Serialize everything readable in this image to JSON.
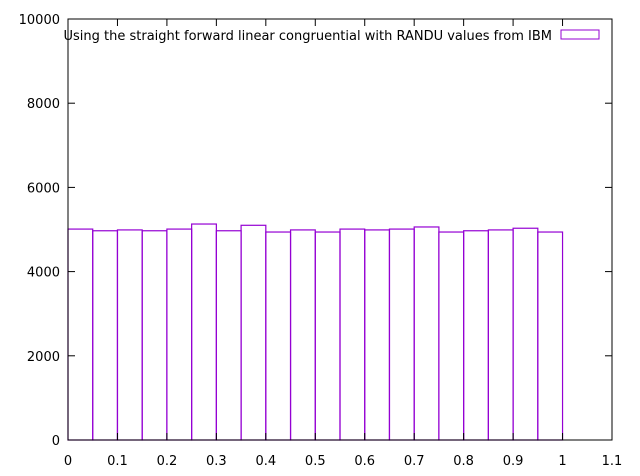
{
  "chart_data": {
    "type": "bar",
    "legend": {
      "label": "Using the straight forward linear congruential with RANDU values from IBM",
      "position": "top-right"
    },
    "xlim": [
      0,
      1.1
    ],
    "ylim": [
      0,
      10000
    ],
    "x_ticks": [
      "0",
      "0.1",
      "0.2",
      "0.3",
      "0.4",
      "0.5",
      "0.6",
      "0.7",
      "0.8",
      "0.9",
      "1",
      "1.1"
    ],
    "y_ticks": [
      "0",
      "2000",
      "4000",
      "6000",
      "8000",
      "10000"
    ],
    "bin_width": 0.05,
    "bin_starts": [
      0,
      0.05,
      0.1,
      0.15,
      0.2,
      0.25,
      0.3,
      0.35,
      0.4,
      0.45,
      0.5,
      0.55,
      0.6,
      0.65,
      0.7,
      0.75,
      0.8,
      0.85,
      0.9,
      0.95
    ],
    "values": [
      5010,
      4970,
      4990,
      4970,
      5010,
      5130,
      4970,
      5100,
      4940,
      4990,
      4940,
      5010,
      4990,
      5010,
      5060,
      4940,
      4970,
      4990,
      5030,
      4940
    ],
    "grid": false,
    "colors": {
      "bar": "#9400d3",
      "axis": "#000000"
    }
  }
}
